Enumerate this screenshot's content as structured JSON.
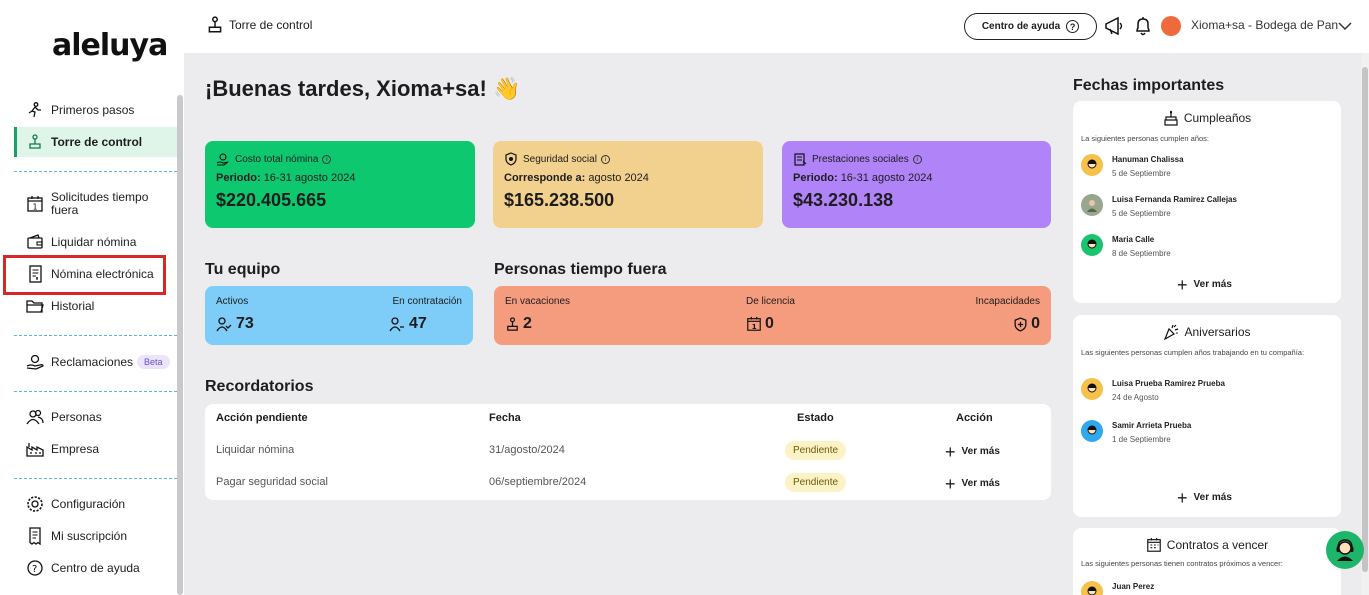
{
  "brand": {
    "logo_text": "aleluya"
  },
  "sidebar": {
    "items": [
      {
        "label": "Primeros pasos",
        "icon": "running-person-icon"
      },
      {
        "label": "Torre de control",
        "icon": "control-tower-icon",
        "active": true
      },
      {
        "label": "Solicitudes tiempo fuera",
        "icon": "calendar-icon"
      },
      {
        "label": "Liquidar nómina",
        "icon": "wallet-icon"
      },
      {
        "label": "Nómina electrónica",
        "icon": "document-icon"
      },
      {
        "label": "Historial",
        "icon": "folder-icon"
      },
      {
        "label": "Reclamaciones",
        "icon": "hand-coin-icon",
        "badge": "Beta"
      },
      {
        "label": "Personas",
        "icon": "people-icon"
      },
      {
        "label": "Empresa",
        "icon": "factory-icon"
      },
      {
        "label": "Configuración",
        "icon": "gear-icon"
      },
      {
        "label": "Mi suscripción",
        "icon": "receipt-icon"
      },
      {
        "label": "Centro de ayuda",
        "icon": "help-icon"
      }
    ]
  },
  "topbar": {
    "breadcrumb": "Torre de control",
    "help_button": "Centro de ayuda",
    "user_name": "Xioma+sa - Bodega de Pan"
  },
  "main": {
    "greeting": "¡Buenas tardes, Xioma+sa! 👋",
    "kpis": [
      {
        "title": "Costo total nómina",
        "period_label": "Periodo:",
        "period_value": "16-31 agosto 2024",
        "amount": "$220.405.665",
        "color": "#0dc86f"
      },
      {
        "title": "Seguridad social",
        "period_label": "Corresponde a:",
        "period_value": "agosto 2024",
        "amount": "$165.238.500",
        "color": "#f2d08e"
      },
      {
        "title": "Prestaciones sociales",
        "period_label": "Periodo:",
        "period_value": "16-31 agosto 2024",
        "amount": "$43.230.138",
        "color": "#b083f8"
      }
    ],
    "team": {
      "title": "Tu equipo",
      "active_label": "Activos",
      "active_value": "73",
      "hiring_label": "En contratación",
      "hiring_value": "47"
    },
    "time_off": {
      "title": "Personas tiempo fuera",
      "vacation_label": "En vacaciones",
      "vacation_value": "2",
      "leave_label": "De licencia",
      "leave_value": "0",
      "disability_label": "Incapacidades",
      "disability_value": "0"
    },
    "reminders": {
      "title": "Recordatorios",
      "headers": [
        "Acción pendiente",
        "Fecha",
        "Estado",
        "Acción"
      ],
      "rows": [
        {
          "action": "Liquidar nómina",
          "date": "31/agosto/2024",
          "status": "Pendiente",
          "link": "Ver más"
        },
        {
          "action": "Pagar seguridad social",
          "date": "06/septiembre/2024",
          "status": "Pendiente",
          "link": "Ver más"
        }
      ]
    }
  },
  "important_dates": {
    "title": "Fechas importantes",
    "birthdays": {
      "title": "Cumpleaños",
      "subtitle": "La siguientes personas cumplen años:",
      "people": [
        {
          "name": "Hanuman Chalissa",
          "date": "5 de Septiembre",
          "color": "#f6c04a"
        },
        {
          "name": "Luisa Fernanda Ramirez Callejas",
          "date": "5 de Septiembre",
          "color": "#9aa58e"
        },
        {
          "name": "Maria Calle",
          "date": "8 de Septiembre",
          "color": "#1cc26e"
        }
      ],
      "link": "Ver más"
    },
    "anniversaries": {
      "title": "Aniversarios",
      "subtitle": "Las siguientes personas cumplen años trabajando en tu compañía:",
      "people": [
        {
          "name": "Luisa Prueba Ramirez Prueba",
          "date": "24 de Agosto",
          "color": "#f6c04a"
        },
        {
          "name": "Samir Arrieta Prueba",
          "date": "1 de Septiembre",
          "color": "#2fa8ef"
        }
      ],
      "link": "Ver más"
    },
    "contracts": {
      "title": "Contratos a vencer",
      "subtitle": "Las siguientes personas tienen contratos próximos a vencer:",
      "people": [
        {
          "name": "Juan Perez",
          "color": "#f6c04a"
        }
      ]
    }
  }
}
